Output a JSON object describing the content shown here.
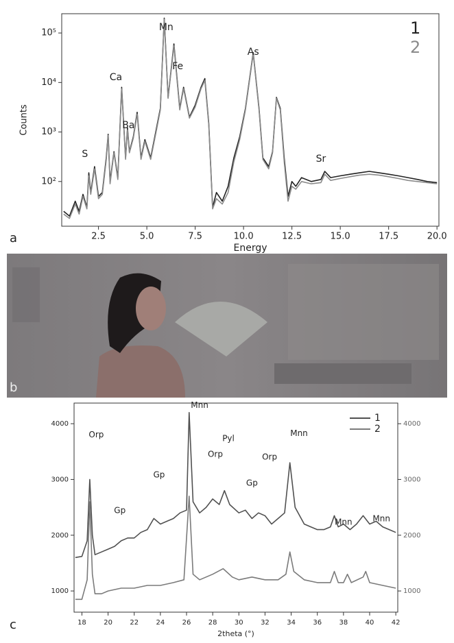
{
  "figure": {
    "panel_labels": [
      "a",
      "b",
      "c"
    ]
  },
  "chart_data": [
    {
      "type": "line",
      "xlabel": "Energy",
      "ylabel": "Counts",
      "log_y": true,
      "xlim": [
        0.6,
        20.1
      ],
      "ylim": [
        12.5,
        245000
      ],
      "xticks": [
        2.5,
        {
          "value": 5,
          "label": "5.0"
        },
        7.5,
        {
          "value": 10,
          "label": "10.0"
        },
        12.5,
        {
          "value": 15,
          "label": "15.0"
        },
        17.5,
        {
          "value": 20,
          "label": "20.0"
        }
      ],
      "yticks": [
        {
          "value": 100,
          "label": "10²"
        },
        {
          "value": 1000,
          "label": "10³"
        },
        {
          "value": 10000,
          "label": "10⁴"
        },
        {
          "value": 100000,
          "label": "10⁵"
        }
      ],
      "legend": "upper right",
      "legend_markers": false,
      "series": [
        {
          "name": "1",
          "color": "#222222",
          "x": [
            0.7,
            1.0,
            1.3,
            1.5,
            1.7,
            1.9,
            2.0,
            2.1,
            2.3,
            2.5,
            2.7,
            2.9,
            3.0,
            3.1,
            3.3,
            3.5,
            3.7,
            3.9,
            4.0,
            4.1,
            4.3,
            4.5,
            4.7,
            4.9,
            5.2,
            5.5,
            5.7,
            5.9,
            6.1,
            6.4,
            6.7,
            6.9,
            7.2,
            7.5,
            7.8,
            8.0,
            8.2,
            8.4,
            8.6,
            8.9,
            9.2,
            9.5,
            9.8,
            10.1,
            10.5,
            10.8,
            11.0,
            11.3,
            11.5,
            11.7,
            11.9,
            12.1,
            12.3,
            12.5,
            12.7,
            13.0,
            13.5,
            14.0,
            14.2,
            14.5,
            15.0,
            15.5,
            16.0,
            16.5,
            17.0,
            17.5,
            18.0,
            18.5,
            19.0,
            19.5,
            20.0
          ],
          "values": [
            25,
            20,
            40,
            25,
            55,
            30,
            150,
            60,
            200,
            50,
            60,
            300,
            900,
            100,
            400,
            120,
            8000,
            300,
            1200,
            400,
            800,
            2500,
            300,
            700,
            300,
            1200,
            3000,
            200000,
            5000,
            60000,
            3000,
            8000,
            2000,
            3500,
            8000,
            12000,
            1500,
            30,
            60,
            40,
            80,
            300,
            800,
            3000,
            40000,
            3000,
            300,
            200,
            400,
            5000,
            3000,
            300,
            50,
            100,
            80,
            120,
            100,
            110,
            160,
            120,
            130,
            140,
            150,
            160,
            150,
            140,
            130,
            120,
            110,
            100,
            95
          ]
        },
        {
          "name": "2",
          "color": "#8a8a8a",
          "x": [
            0.7,
            1.0,
            1.3,
            1.5,
            1.7,
            1.9,
            2.0,
            2.1,
            2.3,
            2.5,
            2.7,
            2.9,
            3.0,
            3.1,
            3.3,
            3.5,
            3.7,
            3.9,
            4.0,
            4.1,
            4.3,
            4.5,
            4.7,
            4.9,
            5.2,
            5.5,
            5.7,
            5.9,
            6.1,
            6.4,
            6.7,
            6.9,
            7.2,
            7.5,
            7.8,
            8.0,
            8.2,
            8.4,
            8.6,
            8.9,
            9.2,
            9.5,
            9.8,
            10.1,
            10.5,
            10.8,
            11.0,
            11.3,
            11.5,
            11.7,
            11.9,
            12.1,
            12.3,
            12.5,
            12.7,
            13.0,
            13.5,
            14.0,
            14.2,
            14.5,
            15.0,
            15.5,
            16.0,
            16.5,
            17.0,
            17.5,
            18.0,
            18.5,
            19.0,
            19.5,
            20.0
          ],
          "values": [
            22,
            18,
            35,
            22,
            50,
            28,
            130,
            55,
            180,
            45,
            55,
            270,
            850,
            90,
            380,
            110,
            7500,
            280,
            1100,
            380,
            750,
            2300,
            280,
            650,
            280,
            1100,
            2800,
            190000,
            4800,
            55000,
            2800,
            7500,
            1900,
            3200,
            7500,
            11000,
            1400,
            28,
            45,
            35,
            60,
            250,
            700,
            2800,
            38000,
            2800,
            280,
            180,
            380,
            4800,
            2800,
            250,
            40,
            80,
            70,
            100,
            90,
            95,
            140,
            105,
            115,
            125,
            135,
            140,
            135,
            125,
            115,
            105,
            100,
            95,
            90
          ]
        }
      ],
      "annotations": [
        {
          "text": "S",
          "x": 1.8,
          "y": 355
        },
        {
          "text": "Ca",
          "x": 3.4,
          "y": 12600
        },
        {
          "text": "Ba",
          "x": 4.05,
          "y": 1350
        },
        {
          "text": "Mn",
          "x": 6.0,
          "y": 130000
        },
        {
          "text": "Fe",
          "x": 6.6,
          "y": 21000
        },
        {
          "text": "As",
          "x": 10.5,
          "y": 41000
        },
        {
          "text": "Sr",
          "x": 14.0,
          "y": 285
        }
      ]
    },
    {
      "type": "line",
      "xlabel": "2theta (°)",
      "xlim": [
        17.4,
        42.15
      ],
      "ylim": [
        620,
        4370
      ],
      "y2lim": [
        620,
        4370
      ],
      "xticks": [
        18,
        20,
        22,
        24,
        26,
        28,
        30,
        32,
        34,
        36,
        38,
        40,
        42
      ],
      "yticks": [
        1000,
        2000,
        3000,
        4000
      ],
      "y2ticks": [
        1000,
        2000,
        3000,
        4000
      ],
      "legend": "upper right",
      "legend_markers": true,
      "series": [
        {
          "name": "1",
          "color": "#505050",
          "x": [
            17.5,
            18.0,
            18.4,
            18.6,
            18.8,
            19.0,
            19.5,
            20.0,
            20.5,
            21.0,
            21.5,
            22.0,
            22.5,
            23.0,
            23.5,
            24.0,
            24.5,
            25.0,
            25.5,
            26.0,
            26.2,
            26.5,
            27.0,
            27.5,
            28.0,
            28.5,
            28.9,
            29.3,
            30.0,
            30.5,
            31.0,
            31.5,
            32.0,
            32.5,
            33.0,
            33.5,
            33.9,
            34.3,
            35.0,
            35.5,
            36.0,
            36.5,
            37.0,
            37.3,
            37.6,
            38.0,
            38.5,
            39.0,
            39.5,
            40.0,
            40.5,
            41.0,
            41.5,
            42.0
          ],
          "values": [
            1600,
            1620,
            1900,
            3000,
            2000,
            1650,
            1700,
            1750,
            1800,
            1900,
            1950,
            1950,
            2050,
            2100,
            2300,
            2200,
            2250,
            2300,
            2400,
            2450,
            4200,
            2600,
            2400,
            2500,
            2650,
            2550,
            2800,
            2550,
            2400,
            2450,
            2300,
            2400,
            2350,
            2200,
            2300,
            2400,
            3300,
            2500,
            2200,
            2150,
            2100,
            2100,
            2150,
            2350,
            2150,
            2200,
            2100,
            2200,
            2350,
            2200,
            2250,
            2150,
            2100,
            2050
          ]
        },
        {
          "name": "2",
          "color": "#7a7a7a",
          "axis": "y2",
          "x": [
            17.5,
            18.0,
            18.4,
            18.6,
            18.8,
            19.0,
            19.5,
            20.0,
            21.0,
            22.0,
            23.0,
            24.0,
            25.0,
            25.8,
            26.2,
            26.5,
            27.0,
            28.0,
            28.8,
            29.5,
            30.0,
            31.0,
            32.0,
            33.0,
            33.6,
            33.9,
            34.2,
            35.0,
            36.0,
            37.0,
            37.3,
            37.6,
            38.0,
            38.3,
            38.6,
            39.5,
            39.7,
            40.0,
            41.0,
            42.0
          ],
          "values": [
            850,
            850,
            1200,
            2600,
            1300,
            950,
            950,
            1000,
            1050,
            1050,
            1100,
            1100,
            1150,
            1200,
            2700,
            1300,
            1200,
            1300,
            1400,
            1250,
            1200,
            1250,
            1200,
            1200,
            1300,
            1700,
            1350,
            1200,
            1150,
            1150,
            1350,
            1150,
            1150,
            1300,
            1150,
            1250,
            1350,
            1150,
            1100,
            1050
          ]
        }
      ],
      "annotations": [
        {
          "text": "Orp",
          "x": 19.1,
          "y": 3800
        },
        {
          "text": "Gp",
          "x": 20.9,
          "y": 2440
        },
        {
          "text": "Gp",
          "x": 23.9,
          "y": 3080
        },
        {
          "text": "Mnn",
          "x": 27.0,
          "y": 4330
        },
        {
          "text": "Orp",
          "x": 28.2,
          "y": 3450
        },
        {
          "text": "Pyl",
          "x": 29.2,
          "y": 3730
        },
        {
          "text": "Gp",
          "x": 31.0,
          "y": 2930
        },
        {
          "text": "Orp",
          "x": 32.35,
          "y": 3400
        },
        {
          "text": "Mnn",
          "x": 34.6,
          "y": 3820
        },
        {
          "text": "Mnn",
          "x": 38.0,
          "y": 2230
        },
        {
          "text": "Mnn",
          "x": 40.9,
          "y": 2290
        }
      ]
    }
  ]
}
